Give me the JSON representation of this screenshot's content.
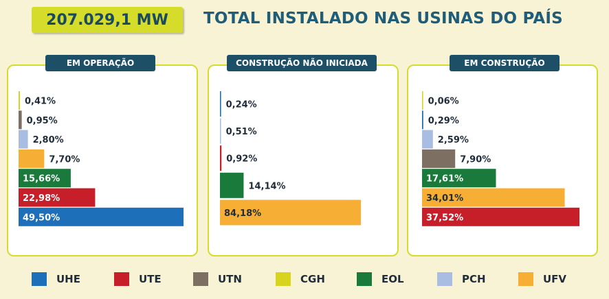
{
  "header": {
    "total": "207.029,1 MW",
    "title": "TOTAL INSTALADO NAS USINAS DO PAÍS"
  },
  "colors": {
    "UHE": "#1c6fb8",
    "UTE": "#c61f2a",
    "UTN": "#7d6f62",
    "CGH": "#d8d31c",
    "EOL": "#1a7a3b",
    "PCH": "#a9bde3",
    "UFV": "#f6af34"
  },
  "legend": [
    "UHE",
    "UTE",
    "UTN",
    "CGH",
    "EOL",
    "PCH",
    "UFV"
  ],
  "chart_data": [
    {
      "type": "bar",
      "title": "EM OPERAÇÃO",
      "orientation": "horizontal",
      "categories": [
        "CGH",
        "UTN",
        "PCH",
        "UFV",
        "EOL",
        "UTE",
        "UHE"
      ],
      "values": [
        0.41,
        0.95,
        2.8,
        7.7,
        15.66,
        22.98,
        49.5
      ],
      "labels": [
        "0,41%",
        "0,95%",
        "2,80%",
        "7,70%",
        "15,66%",
        "22,98%",
        "49,50%"
      ],
      "unit": "%"
    },
    {
      "type": "bar",
      "title": "CONSTRUÇÃO NÃO INICIADA",
      "orientation": "horizontal",
      "categories": [
        "UHE",
        "PCH",
        "UTE",
        "EOL",
        "UFV"
      ],
      "values": [
        0.24,
        0.51,
        0.92,
        14.14,
        84.18
      ],
      "labels": [
        "0,24%",
        "0,51%",
        "0,92%",
        "14,14%",
        "84,18%"
      ],
      "unit": "%"
    },
    {
      "type": "bar",
      "title": "EM CONSTRUÇÃO",
      "orientation": "horizontal",
      "categories": [
        "CGH",
        "UHE",
        "PCH",
        "UTN",
        "EOL",
        "UFV",
        "UTE"
      ],
      "values": [
        0.06,
        0.29,
        2.59,
        7.9,
        17.61,
        34.01,
        37.52
      ],
      "labels": [
        "0,06%",
        "0,29%",
        "2,59%",
        "7,90%",
        "17,61%",
        "34,01%",
        "37,52%"
      ],
      "unit": "%"
    }
  ]
}
